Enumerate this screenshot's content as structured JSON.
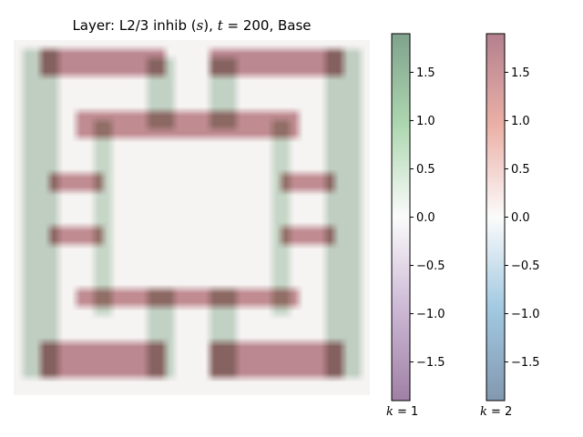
{
  "title": {
    "prefix": "Layer: L2/3 inhib (",
    "var_symbol": "s",
    "mid": "), ",
    "time_symbol": "t",
    "time_value": " = 200",
    "suffix": ", Base"
  },
  "chart_data": {
    "type": "heatmap",
    "title": "Layer: L2/3 inhib (s), t = 200, Base",
    "grid_size": [
      40,
      40
    ],
    "background_value": 0.05,
    "overlays": [
      {
        "name": "k = 1",
        "colormap": "PRGn",
        "cmap_stops": [
          "#40004b",
          "#9970ab",
          "#f7f7f7",
          "#5aae61",
          "#00441b"
        ],
        "alpha": 0.5,
        "range": [
          -1.9,
          1.9
        ],
        "regions": [
          {
            "rows": [
              1,
              37
            ],
            "cols": [
              1,
              4
            ],
            "value": 1.7
          },
          {
            "rows": [
              1,
              37
            ],
            "cols": [
              35,
              38
            ],
            "value": 1.7
          },
          {
            "rows": [
              2,
              9
            ],
            "cols": [
              15,
              17
            ],
            "value": 1.6
          },
          {
            "rows": [
              2,
              9
            ],
            "cols": [
              22,
              24
            ],
            "value": 1.6
          },
          {
            "rows": [
              28,
              37
            ],
            "cols": [
              15,
              17
            ],
            "value": 1.6
          },
          {
            "rows": [
              28,
              37
            ],
            "cols": [
              22,
              24
            ],
            "value": 1.6
          },
          {
            "rows": [
              9,
              30
            ],
            "cols": [
              9,
              10
            ],
            "value": 1.4
          },
          {
            "rows": [
              9,
              30
            ],
            "cols": [
              29,
              30
            ],
            "value": 1.4
          }
        ]
      },
      {
        "name": "k = 2",
        "colormap": "RdBu_r",
        "cmap_stops": [
          "#053061",
          "#4393c3",
          "#f7f7f7",
          "#d6604d",
          "#67001f"
        ],
        "alpha": 0.5,
        "range": [
          -1.9,
          1.9
        ],
        "regions": [
          {
            "rows": [
              1,
              3
            ],
            "cols": [
              3,
              16
            ],
            "value": 1.7
          },
          {
            "rows": [
              1,
              3
            ],
            "cols": [
              22,
              36
            ],
            "value": 1.7
          },
          {
            "rows": [
              34,
              37
            ],
            "cols": [
              3,
              16
            ],
            "value": 1.7
          },
          {
            "rows": [
              34,
              37
            ],
            "cols": [
              22,
              36
            ],
            "value": 1.7
          },
          {
            "rows": [
              8,
              10
            ],
            "cols": [
              7,
              31
            ],
            "value": 1.6
          },
          {
            "rows": [
              28,
              29
            ],
            "cols": [
              7,
              31
            ],
            "value": 1.6
          },
          {
            "rows": [
              15,
              16
            ],
            "cols": [
              4,
              9
            ],
            "value": 1.6
          },
          {
            "rows": [
              21,
              22
            ],
            "cols": [
              4,
              9
            ],
            "value": 1.6
          },
          {
            "rows": [
              15,
              16
            ],
            "cols": [
              30,
              35
            ],
            "value": 1.6
          },
          {
            "rows": [
              21,
              22
            ],
            "cols": [
              30,
              35
            ],
            "value": 1.6
          }
        ]
      }
    ],
    "colorbars": [
      {
        "label_symbol": "k",
        "label_value": " = 1",
        "ticks": [
          1.5,
          1.0,
          0.5,
          0.0,
          -0.5,
          -1.0,
          -1.5
        ],
        "tick_labels": [
          "1.5",
          "1.0",
          "0.5",
          "0.0",
          "−0.5",
          "−1.0",
          "−1.5"
        ],
        "range": [
          -1.9,
          1.9
        ],
        "colors": [
          "#40004b",
          "#9970ab",
          "#f7f7f7",
          "#5aae61",
          "#00441b"
        ]
      },
      {
        "label_symbol": "k",
        "label_value": " = 2",
        "ticks": [
          1.5,
          1.0,
          0.5,
          0.0,
          -0.5,
          -1.0,
          -1.5
        ],
        "tick_labels": [
          "1.5",
          "1.0",
          "0.5",
          "0.0",
          "−0.5",
          "−1.0",
          "−1.5"
        ],
        "range": [
          -1.9,
          1.9
        ],
        "colors": [
          "#053061",
          "#4393c3",
          "#f7f7f7",
          "#d6604d",
          "#67001f"
        ]
      }
    ]
  }
}
